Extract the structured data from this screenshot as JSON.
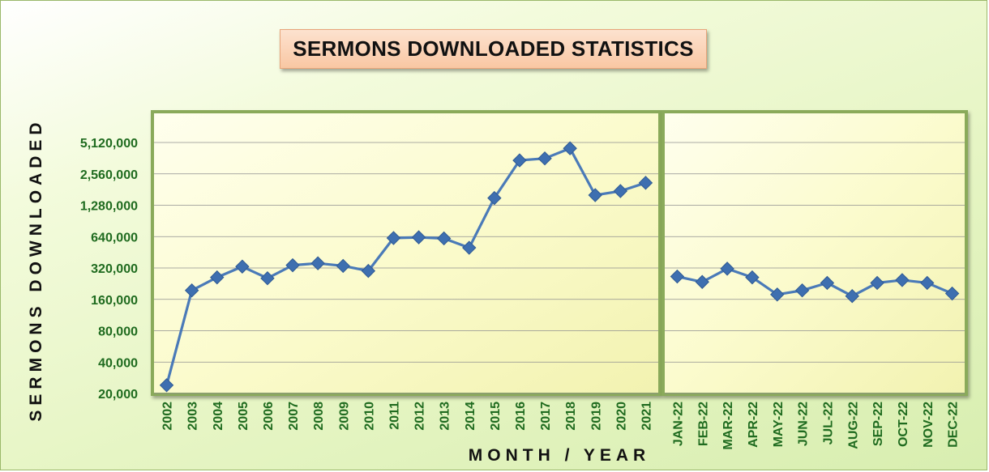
{
  "chart_data": {
    "type": "line",
    "title": "SERMONS DOWNLOADED STATISTICS",
    "xlabel": "MONTH / YEAR",
    "ylabel": "SERMONS DOWNLOADED",
    "y_scale": "log2",
    "ylim": [
      20000,
      7000000
    ],
    "y_ticks": [
      20000,
      40000,
      80000,
      160000,
      320000,
      640000,
      1280000,
      2560000,
      5120000
    ],
    "y_tick_labels": [
      "20,000",
      "40,000",
      "80,000",
      "160,000",
      "320,000",
      "640,000",
      "1,280,000",
      "2,560,000",
      "5,120,000"
    ],
    "grid": true,
    "legend": "none",
    "panels": [
      {
        "categories": [
          "2002",
          "2003",
          "2004",
          "2005",
          "2006",
          "2007",
          "2008",
          "2009",
          "2010",
          "2011",
          "2012",
          "2013",
          "2014",
          "2015",
          "2016",
          "2017",
          "2018",
          "2019",
          "2020",
          "2021"
        ],
        "values": [
          24000,
          195000,
          260000,
          330000,
          255000,
          340000,
          355000,
          335000,
          300000,
          620000,
          630000,
          615000,
          500000,
          1500000,
          3450000,
          3600000,
          4500000,
          1600000,
          1750000,
          2100000
        ]
      },
      {
        "categories": [
          "JAN-22",
          "FEB-22",
          "MAR-22",
          "APR-22",
          "MAY-22",
          "JUN-22",
          "JUL-22",
          "AUG-22",
          "SEP-22",
          "OCT-22",
          "NOV-22",
          "DEC-22"
        ],
        "values": [
          265000,
          235000,
          315000,
          260000,
          178000,
          195000,
          230000,
          172000,
          230000,
          245000,
          230000,
          182000
        ]
      }
    ],
    "colors": {
      "line": "#4a7ab8",
      "marker": "#3e6fb0",
      "tick_text": "#1f6b1f",
      "divider": "#9ab86a"
    }
  }
}
